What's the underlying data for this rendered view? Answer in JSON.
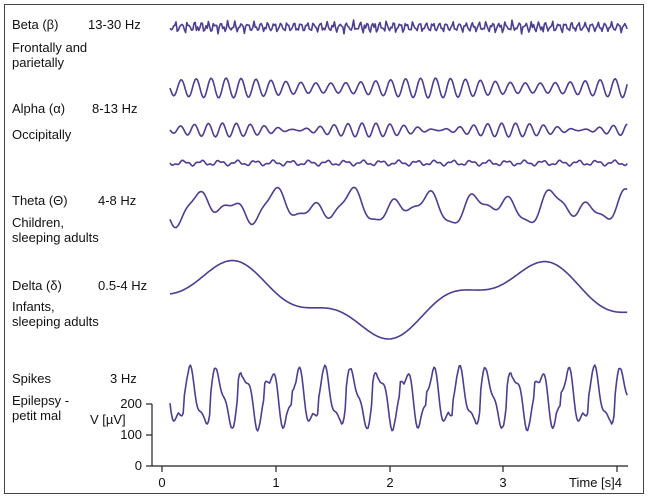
{
  "bands": [
    {
      "name": "Beta (β)",
      "freq": "13-30 Hz",
      "location_lines": [
        "Frontally and",
        "parietally"
      ]
    },
    {
      "name": "Alpha (α)",
      "freq": "8-13 Hz",
      "location_lines": [
        "Occipitally"
      ]
    },
    {
      "name": "Theta (Θ)",
      "freq": "4-8 Hz",
      "location_lines": [
        "Children,",
        "sleeping adults"
      ]
    },
    {
      "name": "Delta (δ)",
      "freq": "0.5-4 Hz",
      "location_lines": [
        "Infants,",
        "sleeping adults"
      ]
    },
    {
      "name": "Spikes",
      "freq": "3 Hz",
      "location_lines": [
        "Epilepsy -",
        "petit mal"
      ]
    }
  ],
  "y_axis": {
    "label": "V [µV]",
    "ticks": [
      "200",
      "100",
      "0"
    ]
  },
  "x_axis": {
    "ticks": [
      "0",
      "1",
      "2",
      "3"
    ],
    "label": "Time [s]4"
  },
  "colors": {
    "trace": "#4b3f8f",
    "axis": "#222222",
    "text": "#111111"
  }
}
